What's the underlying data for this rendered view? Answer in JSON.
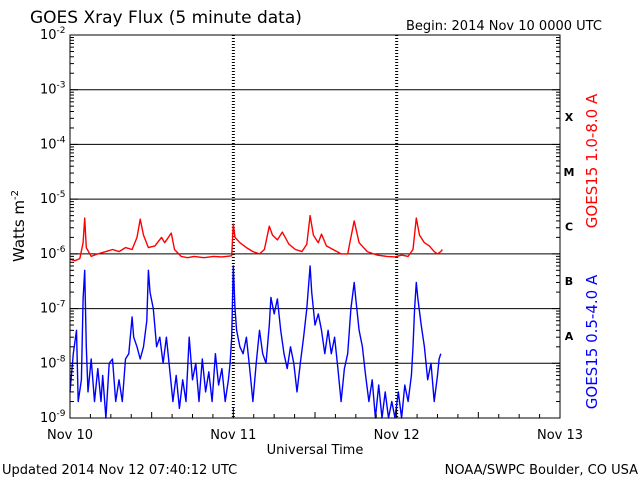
{
  "chart_data": {
    "type": "line",
    "title": "GOES Xray Flux (5 minute data)",
    "begin_label": "Begin:  2014 Nov 10 0000 UTC",
    "ylabel": "Watts m",
    "ylabel_sup": "-2",
    "xlabel": "Universal Time",
    "y_scale": "log",
    "ylim": [
      1e-09,
      0.01
    ],
    "y_ticks": [
      {
        "exp": -2,
        "label_base": "10",
        "label_exp": "-2"
      },
      {
        "exp": -3,
        "label_base": "10",
        "label_exp": "-3"
      },
      {
        "exp": -4,
        "label_base": "10",
        "label_exp": "-4"
      },
      {
        "exp": -5,
        "label_base": "10",
        "label_exp": "-5"
      },
      {
        "exp": -6,
        "label_base": "10",
        "label_exp": "-6"
      },
      {
        "exp": -7,
        "label_base": "10",
        "label_exp": "-7"
      },
      {
        "exp": -8,
        "label_base": "10",
        "label_exp": "-8"
      },
      {
        "exp": -9,
        "label_base": "10",
        "label_exp": "-9"
      }
    ],
    "x_range_days": [
      0,
      3
    ],
    "x_ticks": [
      {
        "day": 0,
        "label": "Nov 10"
      },
      {
        "day": 1,
        "label": "Nov 11"
      },
      {
        "day": 2,
        "label": "Nov 12"
      },
      {
        "day": 3,
        "label": "Nov 13"
      }
    ],
    "flare_classes": [
      {
        "label": "X",
        "exp": -4
      },
      {
        "label": "M",
        "exp": -5
      },
      {
        "label": "C",
        "exp": -6
      },
      {
        "label": "B",
        "exp": -7
      },
      {
        "label": "A",
        "exp": -8
      }
    ],
    "grid": "horizontal at each decade",
    "series": [
      {
        "name": "GOES15 1.0-8.0 A",
        "color": "#ff0000",
        "points": [
          [
            0.0,
            8e-07
          ],
          [
            0.03,
            7.5e-07
          ],
          [
            0.06,
            8.2e-07
          ],
          [
            0.08,
            1.6e-06
          ],
          [
            0.09,
            4.5e-06
          ],
          [
            0.1,
            1.3e-06
          ],
          [
            0.13,
            9e-07
          ],
          [
            0.17,
            1e-06
          ],
          [
            0.22,
            1.1e-06
          ],
          [
            0.26,
            1.2e-06
          ],
          [
            0.3,
            1.1e-06
          ],
          [
            0.34,
            1.3e-06
          ],
          [
            0.38,
            1.2e-06
          ],
          [
            0.41,
            2e-06
          ],
          [
            0.43,
            4.3e-06
          ],
          [
            0.45,
            2.2e-06
          ],
          [
            0.48,
            1.3e-06
          ],
          [
            0.52,
            1.4e-06
          ],
          [
            0.56,
            2e-06
          ],
          [
            0.58,
            1.6e-06
          ],
          [
            0.62,
            2.4e-06
          ],
          [
            0.64,
            1.2e-06
          ],
          [
            0.68,
            9e-07
          ],
          [
            0.72,
            8.5e-07
          ],
          [
            0.76,
            9e-07
          ],
          [
            0.82,
            8.5e-07
          ],
          [
            0.88,
            9e-07
          ],
          [
            0.93,
            8.8e-07
          ],
          [
            0.99,
            9.2e-07
          ],
          [
            1.0,
            3.5e-06
          ],
          [
            1.01,
            2e-06
          ],
          [
            1.04,
            1.6e-06
          ],
          [
            1.08,
            1.3e-06
          ],
          [
            1.12,
            1.1e-06
          ],
          [
            1.16,
            1e-06
          ],
          [
            1.19,
            1.2e-06
          ],
          [
            1.22,
            3.2e-06
          ],
          [
            1.24,
            2.2e-06
          ],
          [
            1.27,
            1.8e-06
          ],
          [
            1.3,
            2.5e-06
          ],
          [
            1.34,
            1.5e-06
          ],
          [
            1.38,
            1.2e-06
          ],
          [
            1.42,
            1.1e-06
          ],
          [
            1.45,
            1.5e-06
          ],
          [
            1.47,
            5e-06
          ],
          [
            1.49,
            2.2e-06
          ],
          [
            1.52,
            1.6e-06
          ],
          [
            1.54,
            2.3e-06
          ],
          [
            1.57,
            1.4e-06
          ],
          [
            1.61,
            1.2e-06
          ],
          [
            1.66,
            1e-06
          ],
          [
            1.7,
            1e-06
          ],
          [
            1.72,
            2e-06
          ],
          [
            1.74,
            4e-06
          ],
          [
            1.77,
            1.6e-06
          ],
          [
            1.82,
            1.1e-06
          ],
          [
            1.88,
            9.5e-07
          ],
          [
            1.94,
            9e-07
          ],
          [
            1.99,
            8.8e-07
          ],
          [
            2.03,
            9.5e-07
          ],
          [
            2.07,
            9e-07
          ],
          [
            2.1,
            1.2e-06
          ],
          [
            2.12,
            4.5e-06
          ],
          [
            2.14,
            2.2e-06
          ],
          [
            2.17,
            1.6e-06
          ],
          [
            2.2,
            1.4e-06
          ],
          [
            2.23,
            1.1e-06
          ],
          [
            2.25,
            1e-06
          ],
          [
            2.27,
            1.1e-06
          ],
          [
            2.28,
            1.2e-06
          ]
        ]
      },
      {
        "name": "GOES15 0.5-4.0 A",
        "color": "#0000ff",
        "points": [
          [
            0.0,
            3e-09
          ],
          [
            0.02,
            1.5e-08
          ],
          [
            0.04,
            4e-08
          ],
          [
            0.05,
            2e-09
          ],
          [
            0.07,
            5e-09
          ],
          [
            0.08,
            1.5e-07
          ],
          [
            0.09,
            5e-07
          ],
          [
            0.1,
            2e-08
          ],
          [
            0.11,
            3e-09
          ],
          [
            0.13,
            1.2e-08
          ],
          [
            0.15,
            2e-09
          ],
          [
            0.17,
            8e-09
          ],
          [
            0.19,
            2e-09
          ],
          [
            0.2,
            6e-09
          ],
          [
            0.22,
            1e-09
          ],
          [
            0.24,
            1e-08
          ],
          [
            0.26,
            1.2e-08
          ],
          [
            0.28,
            2e-09
          ],
          [
            0.3,
            5e-09
          ],
          [
            0.32,
            2e-09
          ],
          [
            0.34,
            1.2e-08
          ],
          [
            0.36,
            1.5e-08
          ],
          [
            0.38,
            7e-08
          ],
          [
            0.39,
            3e-08
          ],
          [
            0.41,
            2e-08
          ],
          [
            0.43,
            1.2e-08
          ],
          [
            0.45,
            2e-08
          ],
          [
            0.47,
            6e-08
          ],
          [
            0.48,
            5e-07
          ],
          [
            0.49,
            2e-07
          ],
          [
            0.51,
            1e-07
          ],
          [
            0.53,
            2e-08
          ],
          [
            0.55,
            3e-08
          ],
          [
            0.57,
            1e-08
          ],
          [
            0.59,
            3e-08
          ],
          [
            0.61,
            8e-09
          ],
          [
            0.63,
            2e-09
          ],
          [
            0.65,
            6e-09
          ],
          [
            0.67,
            1.5e-09
          ],
          [
            0.69,
            5e-09
          ],
          [
            0.71,
            2e-09
          ],
          [
            0.73,
            3e-08
          ],
          [
            0.75,
            5e-09
          ],
          [
            0.77,
            1e-08
          ],
          [
            0.79,
            2e-09
          ],
          [
            0.81,
            1.2e-08
          ],
          [
            0.83,
            3e-09
          ],
          [
            0.85,
            7e-09
          ],
          [
            0.87,
            2e-09
          ],
          [
            0.89,
            1.5e-08
          ],
          [
            0.91,
            4e-09
          ],
          [
            0.93,
            8e-09
          ],
          [
            0.95,
            2e-09
          ],
          [
            0.97,
            5e-09
          ],
          [
            0.98,
            1e-08
          ],
          [
            0.99,
            3e-08
          ],
          [
            1.0,
            6e-07
          ],
          [
            1.01,
            1e-07
          ],
          [
            1.02,
            4e-08
          ],
          [
            1.04,
            2e-08
          ],
          [
            1.06,
            1.5e-08
          ],
          [
            1.08,
            3e-08
          ],
          [
            1.1,
            8e-09
          ],
          [
            1.12,
            2e-09
          ],
          [
            1.14,
            1e-08
          ],
          [
            1.16,
            4e-08
          ],
          [
            1.18,
            1.5e-08
          ],
          [
            1.2,
            1e-08
          ],
          [
            1.22,
            5e-08
          ],
          [
            1.23,
            1.6e-07
          ],
          [
            1.25,
            8e-08
          ],
          [
            1.27,
            1.5e-07
          ],
          [
            1.29,
            4e-08
          ],
          [
            1.31,
            1.5e-08
          ],
          [
            1.33,
            8e-09
          ],
          [
            1.35,
            2e-08
          ],
          [
            1.37,
            1e-08
          ],
          [
            1.39,
            3e-09
          ],
          [
            1.41,
            1e-08
          ],
          [
            1.43,
            3e-08
          ],
          [
            1.45,
            1e-07
          ],
          [
            1.47,
            6e-07
          ],
          [
            1.48,
            2e-07
          ],
          [
            1.5,
            5e-08
          ],
          [
            1.52,
            8e-08
          ],
          [
            1.54,
            4e-08
          ],
          [
            1.56,
            1.5e-08
          ],
          [
            1.58,
            4e-08
          ],
          [
            1.6,
            1.5e-08
          ],
          [
            1.62,
            3e-08
          ],
          [
            1.64,
            8e-09
          ],
          [
            1.66,
            2e-09
          ],
          [
            1.68,
            8e-09
          ],
          [
            1.7,
            1.5e-08
          ],
          [
            1.72,
            1e-07
          ],
          [
            1.74,
            3e-07
          ],
          [
            1.75,
            1.5e-07
          ],
          [
            1.77,
            4e-08
          ],
          [
            1.79,
            2e-08
          ],
          [
            1.81,
            6e-09
          ],
          [
            1.83,
            2e-09
          ],
          [
            1.85,
            5e-09
          ],
          [
            1.87,
            1e-09
          ],
          [
            1.89,
            4e-09
          ],
          [
            1.91,
            1e-09
          ],
          [
            1.93,
            3e-09
          ],
          [
            1.95,
            1e-09
          ],
          [
            1.97,
            2e-09
          ],
          [
            1.99,
            1e-09
          ],
          [
            2.01,
            3e-09
          ],
          [
            2.03,
            1e-09
          ],
          [
            2.05,
            4e-09
          ],
          [
            2.07,
            2e-09
          ],
          [
            2.09,
            6e-09
          ],
          [
            2.1,
            2e-08
          ],
          [
            2.11,
            1e-07
          ],
          [
            2.12,
            3e-07
          ],
          [
            2.13,
            1.5e-07
          ],
          [
            2.15,
            5e-08
          ],
          [
            2.17,
            2e-08
          ],
          [
            2.19,
            5e-09
          ],
          [
            2.21,
            1e-08
          ],
          [
            2.23,
            2e-09
          ],
          [
            2.25,
            6e-09
          ],
          [
            2.26,
            1.2e-08
          ],
          [
            2.27,
            1.5e-08
          ]
        ]
      }
    ],
    "footer_left": "Updated 2014 Nov 12 07:40:12 UTC",
    "footer_right": "NOAA/SWPC Boulder, CO USA"
  }
}
